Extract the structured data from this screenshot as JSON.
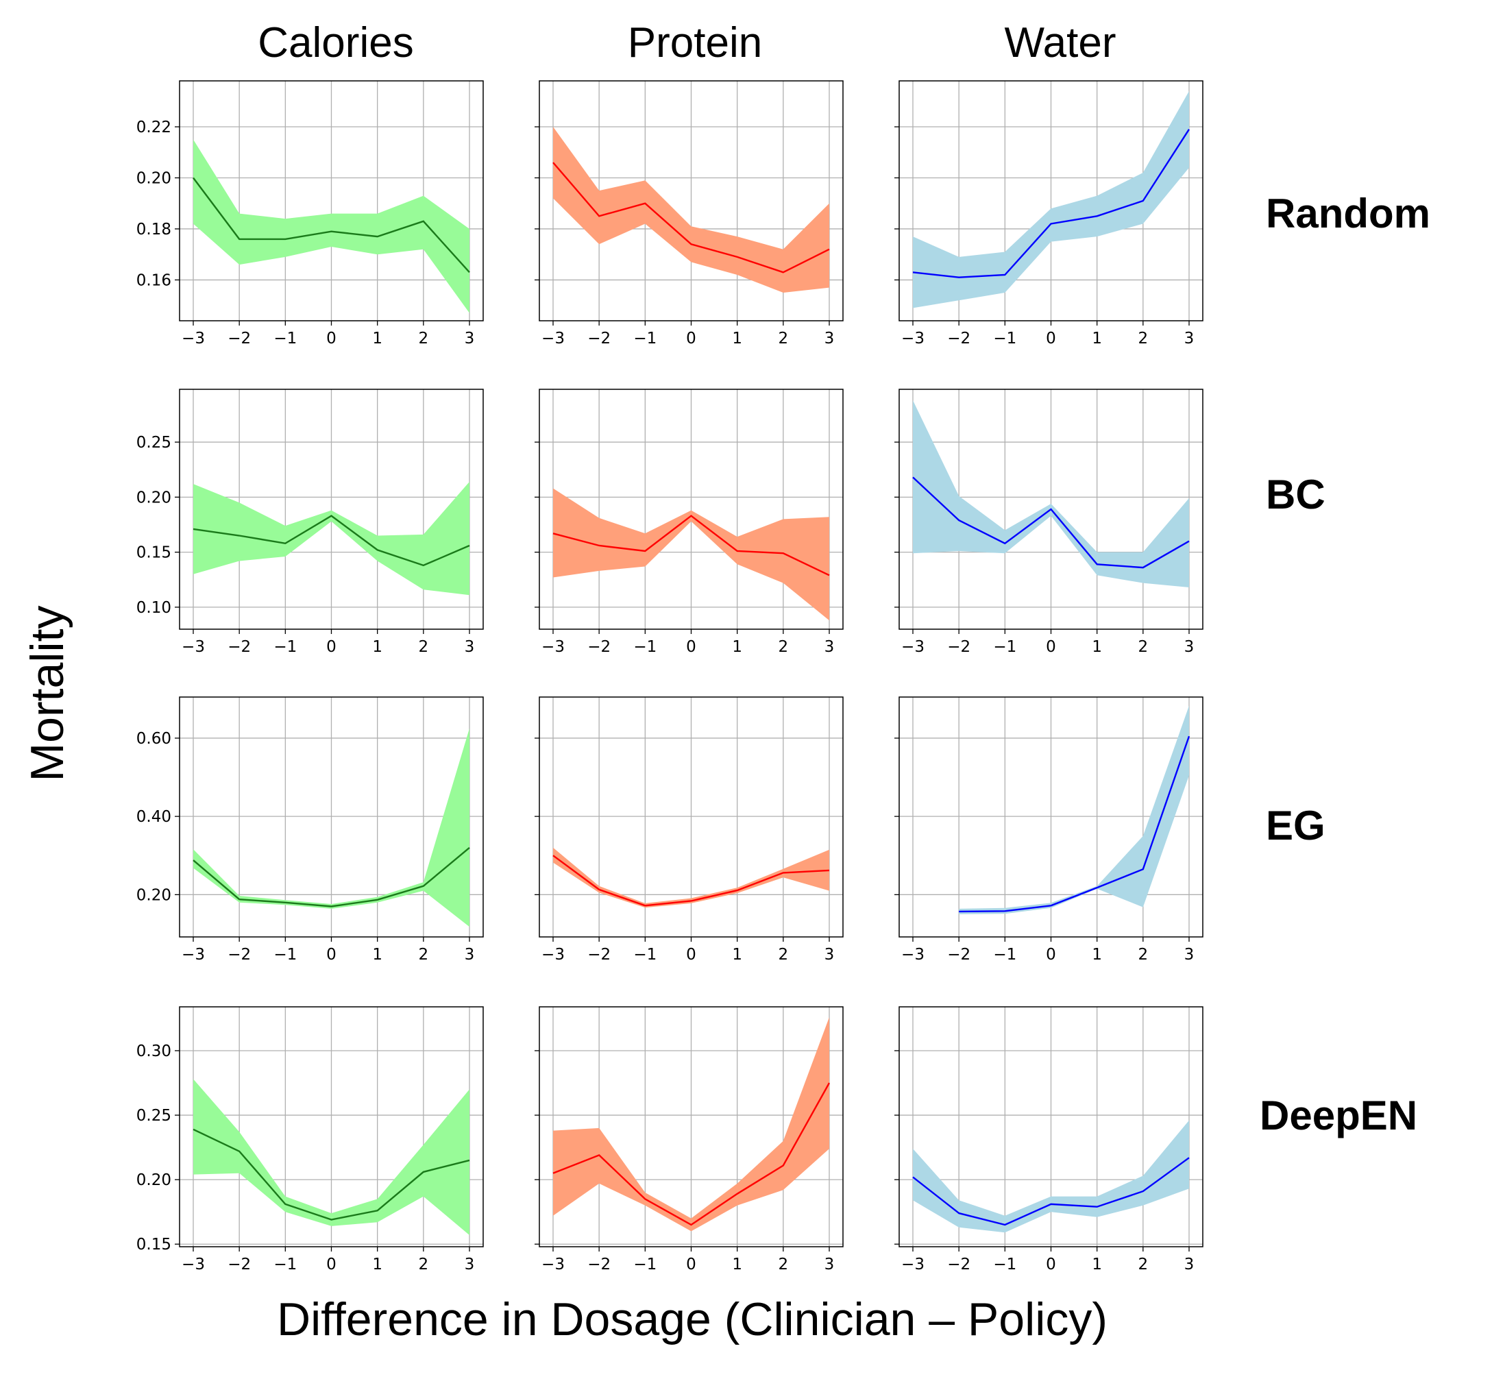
{
  "figure": {
    "ylabel": "Mortality",
    "xlabel": "Difference in Dosage (Clinician – Policy)",
    "columns": [
      "Calories",
      "Protein",
      "Water"
    ],
    "rows": [
      "Random",
      "BC",
      "EG",
      "DeepEN"
    ],
    "colors": {
      "Calories": {
        "line": "#1a7a1a",
        "fill": "#98fb98"
      },
      "Protein": {
        "line": "#ff0000",
        "fill": "#ffa07a"
      },
      "Water": {
        "line": "#0000ff",
        "fill": "#add8e6"
      }
    }
  },
  "chart_data": [
    {
      "type": "line",
      "row": "Random",
      "column": "Calories",
      "x": [
        -3,
        -2,
        -1,
        0,
        1,
        2,
        3
      ],
      "xticks": [
        -3,
        -2,
        -1,
        0,
        1,
        2,
        3
      ],
      "y": [
        0.2,
        0.176,
        0.176,
        0.179,
        0.177,
        0.183,
        0.163
      ],
      "lower": [
        0.182,
        0.166,
        0.169,
        0.173,
        0.17,
        0.172,
        0.147
      ],
      "upper": [
        0.215,
        0.186,
        0.184,
        0.186,
        0.186,
        0.193,
        0.18
      ],
      "ylim": [
        0.144,
        0.238
      ],
      "yticks": [
        0.16,
        0.18,
        0.2,
        0.22
      ],
      "ytick_labels": [
        "0.16",
        "0.18",
        "0.20",
        "0.22"
      ]
    },
    {
      "type": "line",
      "row": "Random",
      "column": "Protein",
      "x": [
        -3,
        -2,
        -1,
        0,
        1,
        2,
        3
      ],
      "xticks": [
        -3,
        -2,
        -1,
        0,
        1,
        2,
        3
      ],
      "y": [
        0.206,
        0.185,
        0.19,
        0.174,
        0.169,
        0.163,
        0.172
      ],
      "lower": [
        0.192,
        0.174,
        0.182,
        0.167,
        0.162,
        0.155,
        0.157
      ],
      "upper": [
        0.22,
        0.195,
        0.199,
        0.181,
        0.177,
        0.172,
        0.19
      ],
      "ylim": [
        0.144,
        0.238
      ],
      "yticks": [
        0.16,
        0.18,
        0.2,
        0.22
      ],
      "ytick_labels": []
    },
    {
      "type": "line",
      "row": "Random",
      "column": "Water",
      "x": [
        -3,
        -2,
        -1,
        0,
        1,
        2,
        3
      ],
      "xticks": [
        -3,
        -2,
        -1,
        0,
        1,
        2,
        3
      ],
      "y": [
        0.163,
        0.161,
        0.162,
        0.182,
        0.185,
        0.191,
        0.219
      ],
      "lower": [
        0.149,
        0.152,
        0.155,
        0.175,
        0.177,
        0.182,
        0.204
      ],
      "upper": [
        0.177,
        0.169,
        0.171,
        0.188,
        0.193,
        0.202,
        0.234
      ],
      "ylim": [
        0.144,
        0.238
      ],
      "yticks": [
        0.16,
        0.18,
        0.2,
        0.22
      ],
      "ytick_labels": []
    },
    {
      "type": "line",
      "row": "BC",
      "column": "Calories",
      "x": [
        -3,
        -2,
        -1,
        0,
        1,
        2,
        3
      ],
      "xticks": [
        -3,
        -2,
        -1,
        0,
        1,
        2,
        3
      ],
      "y": [
        0.171,
        0.165,
        0.158,
        0.183,
        0.152,
        0.138,
        0.156
      ],
      "lower": [
        0.13,
        0.142,
        0.146,
        0.178,
        0.142,
        0.116,
        0.111
      ],
      "upper": [
        0.212,
        0.195,
        0.174,
        0.188,
        0.165,
        0.166,
        0.214
      ],
      "ylim": [
        0.08,
        0.298
      ],
      "yticks": [
        0.1,
        0.15,
        0.2,
        0.25
      ],
      "ytick_labels": [
        "0.10",
        "0.15",
        "0.20",
        "0.25"
      ]
    },
    {
      "type": "line",
      "row": "BC",
      "column": "Protein",
      "x": [
        -3,
        -2,
        -1,
        0,
        1,
        2,
        3
      ],
      "xticks": [
        -3,
        -2,
        -1,
        0,
        1,
        2,
        3
      ],
      "y": [
        0.167,
        0.156,
        0.151,
        0.183,
        0.151,
        0.149,
        0.129
      ],
      "lower": [
        0.127,
        0.133,
        0.137,
        0.178,
        0.139,
        0.122,
        0.088
      ],
      "upper": [
        0.208,
        0.181,
        0.167,
        0.188,
        0.164,
        0.18,
        0.182
      ],
      "ylim": [
        0.08,
        0.298
      ],
      "yticks": [
        0.1,
        0.15,
        0.2,
        0.25
      ],
      "ytick_labels": []
    },
    {
      "type": "line",
      "row": "BC",
      "column": "Water",
      "x": [
        -3,
        -2,
        -1,
        0,
        1,
        2,
        3
      ],
      "xticks": [
        -3,
        -2,
        -1,
        0,
        1,
        2,
        3
      ],
      "y": [
        0.218,
        0.179,
        0.158,
        0.189,
        0.139,
        0.136,
        0.16
      ],
      "lower": [
        0.149,
        0.151,
        0.149,
        0.183,
        0.129,
        0.122,
        0.118
      ],
      "upper": [
        0.288,
        0.201,
        0.17,
        0.194,
        0.15,
        0.15,
        0.199
      ],
      "ylim": [
        0.08,
        0.298
      ],
      "yticks": [
        0.1,
        0.15,
        0.2,
        0.25
      ],
      "ytick_labels": []
    },
    {
      "type": "line",
      "row": "EG",
      "column": "Calories",
      "x": [
        -3,
        -2,
        -1,
        0,
        1,
        2,
        3
      ],
      "xticks": [
        -3,
        -2,
        -1,
        0,
        1,
        2,
        3
      ],
      "y": [
        0.288,
        0.188,
        0.18,
        0.17,
        0.187,
        0.222,
        0.32
      ],
      "lower": [
        0.268,
        0.18,
        0.174,
        0.164,
        0.18,
        0.21,
        0.118
      ],
      "upper": [
        0.316,
        0.197,
        0.186,
        0.176,
        0.194,
        0.232,
        0.625
      ],
      "ylim": [
        0.092,
        0.705
      ],
      "yticks": [
        0.2,
        0.4,
        0.6
      ],
      "ytick_labels": [
        "0.20",
        "0.40",
        "0.60"
      ]
    },
    {
      "type": "line",
      "row": "EG",
      "column": "Protein",
      "x": [
        -3,
        -2,
        -1,
        0,
        1,
        2,
        3
      ],
      "xticks": [
        -3,
        -2,
        -1,
        0,
        1,
        2,
        3
      ],
      "y": [
        0.3,
        0.213,
        0.172,
        0.184,
        0.211,
        0.256,
        0.262
      ],
      "lower": [
        0.282,
        0.205,
        0.167,
        0.178,
        0.204,
        0.244,
        0.21
      ],
      "upper": [
        0.32,
        0.222,
        0.178,
        0.191,
        0.218,
        0.266,
        0.315
      ],
      "ylim": [
        0.092,
        0.705
      ],
      "yticks": [
        0.2,
        0.4,
        0.6
      ],
      "ytick_labels": []
    },
    {
      "type": "line",
      "row": "EG",
      "column": "Water",
      "x": [
        -2,
        -1,
        0,
        1,
        2,
        3
      ],
      "xticks": [
        -3,
        -2,
        -1,
        0,
        1,
        2,
        3
      ],
      "y": [
        0.157,
        0.158,
        0.172,
        0.218,
        0.265,
        0.605
      ],
      "lower": [
        0.15,
        0.151,
        0.166,
        0.215,
        0.168,
        0.505
      ],
      "upper": [
        0.164,
        0.166,
        0.179,
        0.222,
        0.35,
        0.683
      ],
      "ylim": [
        0.092,
        0.705
      ],
      "yticks": [
        0.2,
        0.4,
        0.6
      ],
      "ytick_labels": []
    },
    {
      "type": "line",
      "row": "DeepEN",
      "column": "Calories",
      "x": [
        -3,
        -2,
        -1,
        0,
        1,
        2,
        3
      ],
      "xticks": [
        -3,
        -2,
        -1,
        0,
        1,
        2,
        3
      ],
      "y": [
        0.239,
        0.222,
        0.181,
        0.169,
        0.176,
        0.206,
        0.215
      ],
      "lower": [
        0.204,
        0.205,
        0.175,
        0.164,
        0.167,
        0.187,
        0.157
      ],
      "upper": [
        0.278,
        0.237,
        0.187,
        0.174,
        0.185,
        0.227,
        0.27
      ],
      "ylim": [
        0.148,
        0.334
      ],
      "yticks": [
        0.15,
        0.2,
        0.25,
        0.3
      ],
      "ytick_labels": [
        "0.15",
        "0.20",
        "0.25",
        "0.30"
      ]
    },
    {
      "type": "line",
      "row": "DeepEN",
      "column": "Protein",
      "x": [
        -3,
        -2,
        -1,
        0,
        1,
        2,
        3
      ],
      "xticks": [
        -3,
        -2,
        -1,
        0,
        1,
        2,
        3
      ],
      "y": [
        0.205,
        0.219,
        0.185,
        0.165,
        0.189,
        0.211,
        0.275
      ],
      "lower": [
        0.172,
        0.197,
        0.18,
        0.16,
        0.18,
        0.192,
        0.224
      ],
      "upper": [
        0.238,
        0.24,
        0.19,
        0.17,
        0.197,
        0.23,
        0.326
      ],
      "ylim": [
        0.148,
        0.334
      ],
      "yticks": [
        0.15,
        0.2,
        0.25,
        0.3
      ],
      "ytick_labels": []
    },
    {
      "type": "line",
      "row": "DeepEN",
      "column": "Water",
      "x": [
        -3,
        -2,
        -1,
        0,
        1,
        2,
        3
      ],
      "xticks": [
        -3,
        -2,
        -1,
        0,
        1,
        2,
        3
      ],
      "y": [
        0.202,
        0.174,
        0.165,
        0.181,
        0.179,
        0.191,
        0.217
      ],
      "lower": [
        0.184,
        0.163,
        0.159,
        0.175,
        0.171,
        0.18,
        0.193
      ],
      "upper": [
        0.224,
        0.184,
        0.172,
        0.187,
        0.187,
        0.203,
        0.246
      ],
      "ylim": [
        0.148,
        0.334
      ],
      "yticks": [
        0.15,
        0.2,
        0.25,
        0.3
      ],
      "ytick_labels": []
    }
  ]
}
